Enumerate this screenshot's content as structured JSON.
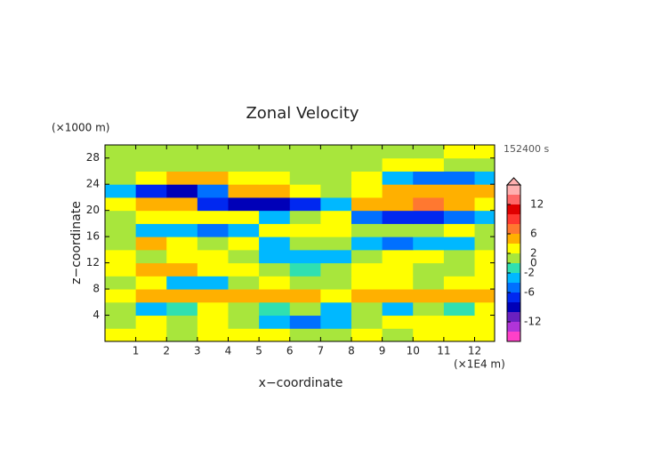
{
  "chart_data": {
    "type": "contour",
    "title": "Zonal Velocity",
    "x_label": "x−coordinate",
    "y_label": "z−coordinate",
    "x_unit": "(×1E4 m)",
    "y_unit": "(×1000 m)",
    "time_label": "152400 s",
    "xlim": [
      0,
      12.65
    ],
    "ylim": [
      0,
      30
    ],
    "xticks": [
      1,
      2,
      3,
      4,
      5,
      6,
      7,
      8,
      9,
      10,
      11,
      12
    ],
    "yticks": [
      4,
      8,
      12,
      16,
      20,
      24,
      28
    ],
    "x": [
      0.5,
      1.5,
      2.5,
      3.5,
      4.5,
      5.5,
      6.5,
      7.5,
      8.5,
      9.5,
      10.5,
      11.5,
      12.5
    ],
    "y": [
      1,
      3,
      5,
      7,
      9,
      11,
      13,
      15,
      17,
      19,
      21,
      23,
      25,
      27,
      29
    ],
    "z": [
      [
        3,
        3,
        1,
        3,
        3,
        3,
        1,
        1,
        3,
        1,
        3,
        3,
        3
      ],
      [
        1,
        3,
        1,
        3,
        1,
        -3,
        -5,
        -3,
        1,
        3,
        3,
        3,
        3
      ],
      [
        1,
        -3,
        -1,
        3,
        1,
        -1,
        1,
        -3,
        1,
        -3,
        1,
        -1,
        3
      ],
      [
        3,
        5,
        5,
        5,
        5,
        5,
        5,
        3,
        5,
        5,
        5,
        5,
        5
      ],
      [
        1,
        3,
        -3,
        -3,
        1,
        3,
        1,
        1,
        3,
        3,
        1,
        3,
        3
      ],
      [
        3,
        5,
        5,
        3,
        3,
        1,
        -1,
        1,
        3,
        3,
        1,
        1,
        3
      ],
      [
        3,
        1,
        3,
        3,
        1,
        -3,
        -3,
        -3,
        1,
        3,
        3,
        1,
        3
      ],
      [
        1,
        5,
        3,
        1,
        3,
        -3,
        1,
        1,
        -3,
        -5,
        -3,
        -3,
        1
      ],
      [
        1,
        -3,
        -3,
        -5,
        -3,
        3,
        3,
        3,
        1,
        1,
        1,
        3,
        1
      ],
      [
        1,
        3,
        3,
        3,
        3,
        -3,
        1,
        3,
        -5,
        -7,
        -7,
        -5,
        -3
      ],
      [
        3,
        5,
        5,
        -7,
        -9,
        -9,
        -7,
        -3,
        5,
        5,
        7,
        5,
        3
      ],
      [
        -3,
        -7,
        -9,
        -5,
        5,
        5,
        3,
        1,
        3,
        5,
        5,
        5,
        5
      ],
      [
        1,
        3,
        5,
        5,
        3,
        3,
        1,
        1,
        3,
        -3,
        -5,
        -5,
        -3
      ],
      [
        1,
        1,
        1,
        1,
        1,
        1,
        1,
        1,
        1,
        3,
        3,
        1,
        1
      ],
      [
        1,
        1,
        1,
        1,
        1,
        1,
        1,
        1,
        1,
        1,
        1,
        3,
        3
      ]
    ],
    "colorbar": {
      "levels": [
        -16,
        -14,
        -12,
        -10,
        -8,
        -6,
        -4,
        -2,
        0,
        2,
        4,
        6,
        8,
        10,
        12,
        14,
        16
      ],
      "colors": [
        "#ff40c8",
        "#b034d8",
        "#6a20c0",
        "#0000b8",
        "#0028f0",
        "#0070ff",
        "#00b8ff",
        "#30e0b0",
        "#a8e63c",
        "#ffff00",
        "#ffb000",
        "#ff7830",
        "#ff3830",
        "#e00000",
        "#ff6868",
        "#ffb0b0"
      ],
      "ticks": [
        12,
        6,
        2,
        0,
        -2,
        -6,
        -12
      ]
    }
  }
}
